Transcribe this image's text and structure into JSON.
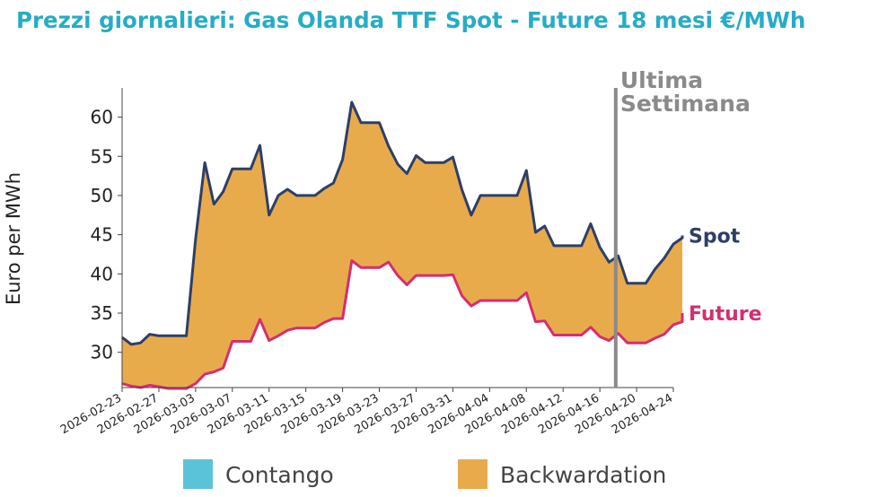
{
  "chart_data": {
    "type": "area",
    "title": "Prezzi giornalieri: Gas Olanda TTF Spot - Future 18 mesi €/MWh",
    "ylabel": "Euro per MWh",
    "xlabel": "",
    "ylim": [
      25.5,
      63.5
    ],
    "yticks": [
      30,
      35,
      40,
      45,
      50,
      55,
      60
    ],
    "x_start": "2026-02-23",
    "x_end": "2026-04-24",
    "xticks": [
      "2026-02-23",
      "2026-02-27",
      "2026-03-03",
      "2026-03-07",
      "2026-03-11",
      "2026-03-15",
      "2026-03-19",
      "2026-03-23",
      "2026-03-27",
      "2026-03-31",
      "2026-04-04",
      "2026-04-08",
      "2026-04-12",
      "2026-04-16",
      "2026-04-20",
      "2026-04-24"
    ],
    "series": [
      {
        "name": "Spot",
        "color": "#2e3f66",
        "points": [
          [
            "2026-02-23",
            31.9
          ],
          [
            "2026-02-24",
            31.0
          ],
          [
            "2026-02-25",
            31.2
          ],
          [
            "2026-02-26",
            32.3
          ],
          [
            "2026-02-27",
            32.1
          ],
          [
            "2026-02-28",
            32.1
          ],
          [
            "2026-03-01",
            32.1
          ],
          [
            "2026-03-02",
            32.1
          ],
          [
            "2026-03-03",
            44.5
          ],
          [
            "2026-03-04",
            54.2
          ],
          [
            "2026-03-05",
            48.9
          ],
          [
            "2026-03-06",
            50.5
          ],
          [
            "2026-03-07",
            53.4
          ],
          [
            "2026-03-08",
            53.4
          ],
          [
            "2026-03-09",
            53.4
          ],
          [
            "2026-03-10",
            56.4
          ],
          [
            "2026-03-11",
            47.5
          ],
          [
            "2026-03-12",
            50.0
          ],
          [
            "2026-03-13",
            50.8
          ],
          [
            "2026-03-14",
            50.0
          ],
          [
            "2026-03-15",
            50.0
          ],
          [
            "2026-03-16",
            50.0
          ],
          [
            "2026-03-17",
            50.9
          ],
          [
            "2026-03-18",
            51.6
          ],
          [
            "2026-03-19",
            54.6
          ],
          [
            "2026-03-20",
            61.9
          ],
          [
            "2026-03-21",
            59.3
          ],
          [
            "2026-03-22",
            59.3
          ],
          [
            "2026-03-23",
            59.3
          ],
          [
            "2026-03-24",
            56.3
          ],
          [
            "2026-03-25",
            54.0
          ],
          [
            "2026-03-26",
            52.8
          ],
          [
            "2026-03-27",
            55.1
          ],
          [
            "2026-03-28",
            54.2
          ],
          [
            "2026-03-29",
            54.2
          ],
          [
            "2026-03-30",
            54.2
          ],
          [
            "2026-03-31",
            54.9
          ],
          [
            "2026-04-01",
            50.7
          ],
          [
            "2026-04-02",
            47.5
          ],
          [
            "2026-04-03",
            50.0
          ],
          [
            "2026-04-04",
            50.0
          ],
          [
            "2026-04-05",
            50.0
          ],
          [
            "2026-04-06",
            50.0
          ],
          [
            "2026-04-07",
            50.0
          ],
          [
            "2026-04-08",
            53.2
          ],
          [
            "2026-04-09",
            45.3
          ],
          [
            "2026-04-10",
            46.1
          ],
          [
            "2026-04-11",
            43.6
          ],
          [
            "2026-04-12",
            43.6
          ],
          [
            "2026-04-13",
            43.6
          ],
          [
            "2026-04-14",
            43.6
          ],
          [
            "2026-04-15",
            46.4
          ],
          [
            "2026-04-16",
            43.4
          ],
          [
            "2026-04-17",
            41.5
          ],
          [
            "2026-04-18",
            42.3
          ],
          [
            "2026-04-19",
            38.8
          ],
          [
            "2026-04-20",
            38.8
          ],
          [
            "2026-04-21",
            38.8
          ],
          [
            "2026-04-22",
            40.6
          ],
          [
            "2026-04-23",
            42.0
          ],
          [
            "2026-04-24",
            43.8
          ],
          [
            "2026-04-25",
            44.6
          ],
          [
            "2026-04-26",
            44.9
          ]
        ]
      },
      {
        "name": "Future",
        "color": "#d62d72",
        "points": [
          [
            "2026-02-23",
            26.0
          ],
          [
            "2026-02-24",
            25.7
          ],
          [
            "2026-02-25",
            25.5
          ],
          [
            "2026-02-26",
            25.8
          ],
          [
            "2026-02-27",
            25.6
          ],
          [
            "2026-02-28",
            25.3
          ],
          [
            "2026-03-01",
            25.3
          ],
          [
            "2026-03-02",
            25.3
          ],
          [
            "2026-03-03",
            26.0
          ],
          [
            "2026-03-04",
            27.2
          ],
          [
            "2026-03-05",
            27.5
          ],
          [
            "2026-03-06",
            28.0
          ],
          [
            "2026-03-07",
            31.4
          ],
          [
            "2026-03-08",
            31.4
          ],
          [
            "2026-03-09",
            31.4
          ],
          [
            "2026-03-10",
            34.2
          ],
          [
            "2026-03-11",
            31.5
          ],
          [
            "2026-03-12",
            32.1
          ],
          [
            "2026-03-13",
            32.8
          ],
          [
            "2026-03-14",
            33.1
          ],
          [
            "2026-03-15",
            33.1
          ],
          [
            "2026-03-16",
            33.1
          ],
          [
            "2026-03-17",
            33.8
          ],
          [
            "2026-03-18",
            34.3
          ],
          [
            "2026-03-19",
            34.3
          ],
          [
            "2026-03-20",
            41.7
          ],
          [
            "2026-03-21",
            40.8
          ],
          [
            "2026-03-22",
            40.8
          ],
          [
            "2026-03-23",
            40.8
          ],
          [
            "2026-03-24",
            41.5
          ],
          [
            "2026-03-25",
            39.8
          ],
          [
            "2026-03-26",
            38.6
          ],
          [
            "2026-03-27",
            39.8
          ],
          [
            "2026-03-28",
            39.8
          ],
          [
            "2026-03-29",
            39.8
          ],
          [
            "2026-03-30",
            39.8
          ],
          [
            "2026-03-31",
            39.9
          ],
          [
            "2026-04-01",
            37.2
          ],
          [
            "2026-04-02",
            35.9
          ],
          [
            "2026-04-03",
            36.6
          ],
          [
            "2026-04-04",
            36.6
          ],
          [
            "2026-04-05",
            36.6
          ],
          [
            "2026-04-06",
            36.6
          ],
          [
            "2026-04-07",
            36.6
          ],
          [
            "2026-04-08",
            37.6
          ],
          [
            "2026-04-09",
            33.9
          ],
          [
            "2026-04-10",
            34.0
          ],
          [
            "2026-04-11",
            32.2
          ],
          [
            "2026-04-12",
            32.2
          ],
          [
            "2026-04-13",
            32.2
          ],
          [
            "2026-04-14",
            32.2
          ],
          [
            "2026-04-15",
            33.2
          ],
          [
            "2026-04-16",
            32.0
          ],
          [
            "2026-04-17",
            31.5
          ],
          [
            "2026-04-18",
            32.4
          ],
          [
            "2026-04-19",
            31.2
          ],
          [
            "2026-04-20",
            31.2
          ],
          [
            "2026-04-21",
            31.2
          ],
          [
            "2026-04-22",
            31.8
          ],
          [
            "2026-04-23",
            32.3
          ],
          [
            "2026-04-24",
            33.5
          ],
          [
            "2026-04-25",
            33.9
          ],
          [
            "2026-04-26",
            35.0
          ]
        ]
      }
    ],
    "fill_color": "#e8ab4c",
    "vline": {
      "date": "2026-04-19",
      "label_lines": [
        "Ultima",
        "Settimana"
      ],
      "color": "#8a8a8a"
    },
    "legend": [
      {
        "label": "Contango",
        "color": "#5bc3d8"
      },
      {
        "label": "Backwardation",
        "color": "#e8ab4c"
      }
    ],
    "legend_position": "bottom"
  }
}
